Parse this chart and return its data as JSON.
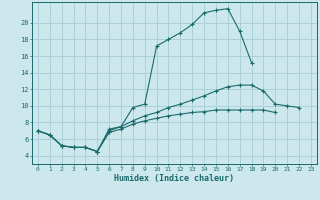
{
  "xlabel": "Humidex (Indice chaleur)",
  "bg_color": "#cce8ed",
  "grid_color": "#aad0d8",
  "line_color": "#1a6b6b",
  "xlim": [
    -0.5,
    23.5
  ],
  "ylim": [
    3.0,
    22.5
  ],
  "xticks": [
    0,
    1,
    2,
    3,
    4,
    5,
    6,
    7,
    8,
    9,
    10,
    11,
    12,
    13,
    14,
    15,
    16,
    17,
    18,
    19,
    20,
    21,
    22,
    23
  ],
  "yticks": [
    4,
    6,
    8,
    10,
    12,
    14,
    16,
    18,
    20
  ],
  "line1_x": [
    0,
    1,
    2,
    3,
    4,
    5,
    6,
    7,
    8,
    9,
    10,
    11,
    12,
    13,
    14,
    15,
    16,
    17,
    18
  ],
  "line1_y": [
    7.0,
    6.5,
    5.2,
    5.0,
    5.0,
    4.5,
    7.2,
    7.5,
    9.8,
    10.2,
    17.2,
    18.0,
    18.8,
    19.8,
    21.2,
    21.5,
    21.7,
    19.0,
    15.2
  ],
  "line2_x": [
    0,
    1,
    2,
    3,
    4,
    5,
    6,
    7,
    8,
    9,
    10,
    11,
    12,
    13,
    14,
    15,
    16,
    17,
    18,
    19,
    20,
    21,
    22
  ],
  "line2_y": [
    7.0,
    6.5,
    5.2,
    5.0,
    5.0,
    4.5,
    7.0,
    7.5,
    8.2,
    8.8,
    9.2,
    9.8,
    10.2,
    10.7,
    11.2,
    11.8,
    12.3,
    12.5,
    12.5,
    11.8,
    10.2,
    10.0,
    9.8
  ],
  "line3_x": [
    0,
    1,
    2,
    3,
    4,
    5,
    6,
    7,
    8,
    9,
    10,
    11,
    12,
    13,
    14,
    15,
    16,
    17,
    18,
    19,
    20
  ],
  "line3_y": [
    7.0,
    6.5,
    5.2,
    5.0,
    5.0,
    4.5,
    6.8,
    7.2,
    7.8,
    8.2,
    8.5,
    8.8,
    9.0,
    9.2,
    9.3,
    9.5,
    9.5,
    9.5,
    9.5,
    9.5,
    9.2
  ]
}
